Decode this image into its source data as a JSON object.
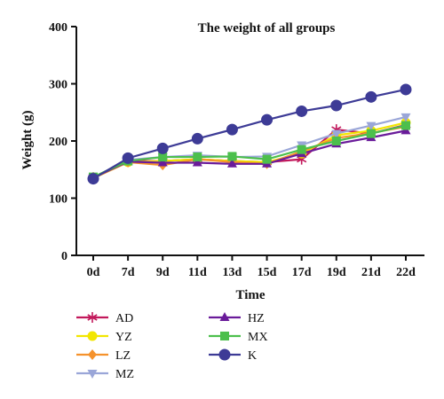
{
  "chart_data": {
    "type": "line",
    "title": "The weight of all groups",
    "xlabel": "Time",
    "ylabel": "Weight (g)",
    "categories": [
      "0d",
      "7d",
      "9d",
      "11d",
      "13d",
      "15d",
      "17d",
      "19d",
      "21d",
      "22d"
    ],
    "ylim": [
      0,
      400
    ],
    "yticks": [
      0,
      100,
      200,
      300,
      400
    ],
    "grid": false,
    "legend_position": "bottom",
    "series": [
      {
        "name": "AD",
        "color": "#c2185b",
        "marker": "asterisk",
        "values": [
          136,
          165,
          165,
          168,
          165,
          163,
          168,
          220,
          213,
          228
        ]
      },
      {
        "name": "YZ",
        "color": "#f2e600",
        "marker": "circle",
        "values": [
          135,
          163,
          165,
          168,
          165,
          163,
          178,
          210,
          218,
          232
        ]
      },
      {
        "name": "LZ",
        "color": "#f5922c",
        "marker": "diamond",
        "values": [
          135,
          163,
          158,
          168,
          163,
          160,
          182,
          205,
          214,
          225
        ]
      },
      {
        "name": "MZ",
        "color": "#9aa6d8",
        "marker": "triangle-down",
        "values": [
          136,
          167,
          172,
          175,
          172,
          173,
          193,
          213,
          227,
          242
        ]
      },
      {
        "name": "HZ",
        "color": "#6a1b9a",
        "marker": "triangle-up",
        "values": [
          136,
          164,
          162,
          162,
          160,
          160,
          178,
          195,
          206,
          218
        ]
      },
      {
        "name": "MX",
        "color": "#4cbf4c",
        "marker": "square",
        "values": [
          137,
          165,
          172,
          172,
          173,
          168,
          185,
          200,
          213,
          227
        ]
      },
      {
        "name": "K",
        "color": "#3d3b96",
        "marker": "circle",
        "values": [
          134,
          170,
          187,
          204,
          220,
          237,
          252,
          262,
          277,
          290
        ]
      }
    ]
  }
}
